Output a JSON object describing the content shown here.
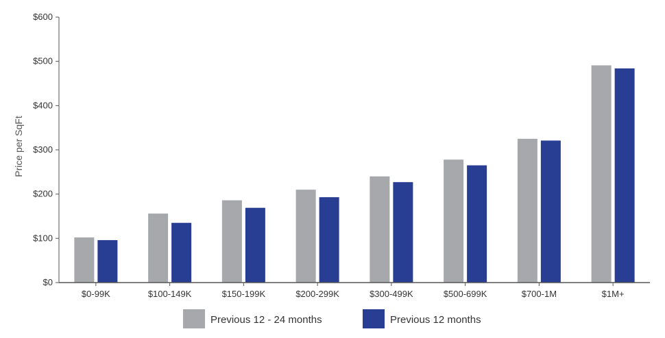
{
  "chart_data": {
    "type": "bar",
    "title": "",
    "xlabel": "",
    "ylabel": "Price per SqFt",
    "ylim": [
      0,
      600
    ],
    "yticks": [
      0,
      100,
      200,
      300,
      400,
      500,
      600
    ],
    "ytick_labels": [
      "$0",
      "$100",
      "$200",
      "$300",
      "$400",
      "$500",
      "$600"
    ],
    "categories": [
      "$0-99K",
      "$100-149K",
      "$150-199K",
      "$200-299K",
      "$300-499K",
      "$500-699K",
      "$700-1M",
      "$1M+"
    ],
    "series": [
      {
        "name": "Previous 12 - 24 months",
        "color": "#a7a8ab",
        "values": [
          102,
          156,
          186,
          210,
          240,
          278,
          325,
          491
        ]
      },
      {
        "name": "Previous 12 months",
        "color": "#283e93",
        "values": [
          96,
          135,
          169,
          193,
          227,
          265,
          321,
          484
        ]
      }
    ],
    "grid": false,
    "legend": "bottom-center"
  }
}
